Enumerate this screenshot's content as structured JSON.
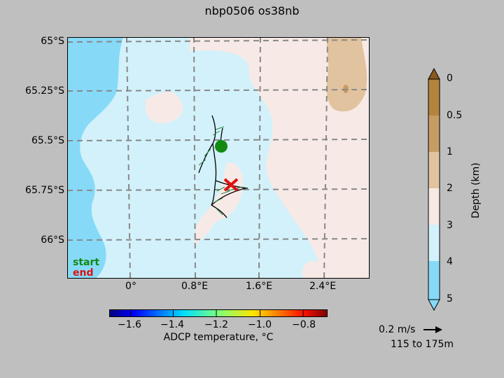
{
  "title": "nbp0506 os38nb",
  "map": {
    "lat_labels": [
      "65°S",
      "65.25°S",
      "65.5°S",
      "65.75°S",
      "66°S"
    ],
    "lon_labels": [
      "0°",
      "0.8°E",
      "1.6°E",
      "2.4°E"
    ],
    "legend": {
      "start": "start",
      "end": "end"
    },
    "colors": {
      "start": "#118a11",
      "end": "#e01010"
    }
  },
  "temperature_colorbar": {
    "tick_labels": [
      "−1.6",
      "−1.4",
      "−1.2",
      "−1.0",
      "−0.8"
    ],
    "label": "ADCP temperature, °C",
    "colormap": "jet"
  },
  "depth_colorbar": {
    "tick_labels": [
      "0",
      "0.5",
      "1",
      "2",
      "3",
      "4",
      "5"
    ],
    "label": "Depth (km)",
    "colors": [
      "#b4843d",
      "#c79c63",
      "#e2c39f",
      "#f7eae6",
      "#d2f1fb",
      "#86daf8"
    ]
  },
  "scale": {
    "speed": "0.2 m/s",
    "depth_range": "115 to 175m"
  }
}
